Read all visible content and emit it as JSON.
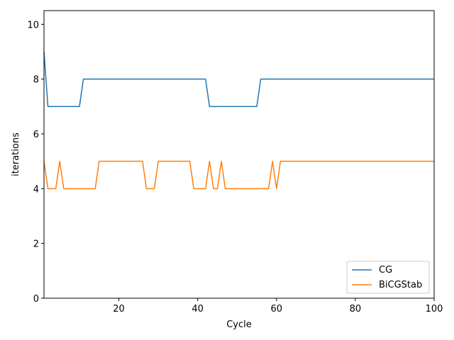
{
  "chart_data": {
    "type": "line",
    "title": "",
    "xlabel": "Cycle",
    "ylabel": "iterations",
    "xlim": [
      1,
      100
    ],
    "ylim": [
      0,
      10.5
    ],
    "xticks": [
      20,
      40,
      60,
      80,
      100
    ],
    "yticks": [
      0,
      2,
      4,
      6,
      8,
      10
    ],
    "grid": false,
    "legend_position": "lower-right",
    "series": [
      {
        "name": "CG",
        "color": "#1f77b4",
        "x": [
          1,
          2,
          10,
          11,
          42,
          43,
          55,
          56,
          100
        ],
        "y": [
          9,
          7,
          7,
          8,
          8,
          7,
          7,
          8,
          8
        ]
      },
      {
        "name": "BiCGStab",
        "color": "#ff7f0e",
        "x": [
          1,
          2,
          4,
          5,
          6,
          14,
          15,
          26,
          27,
          29,
          30,
          38,
          39,
          42,
          43,
          44,
          45,
          46,
          47,
          58,
          59,
          60,
          61,
          100
        ],
        "y": [
          5,
          4,
          4,
          5,
          4,
          4,
          5,
          5,
          4,
          4,
          5,
          5,
          4,
          4,
          5,
          4,
          4,
          5,
          4,
          4,
          5,
          4,
          5,
          5
        ]
      }
    ]
  }
}
